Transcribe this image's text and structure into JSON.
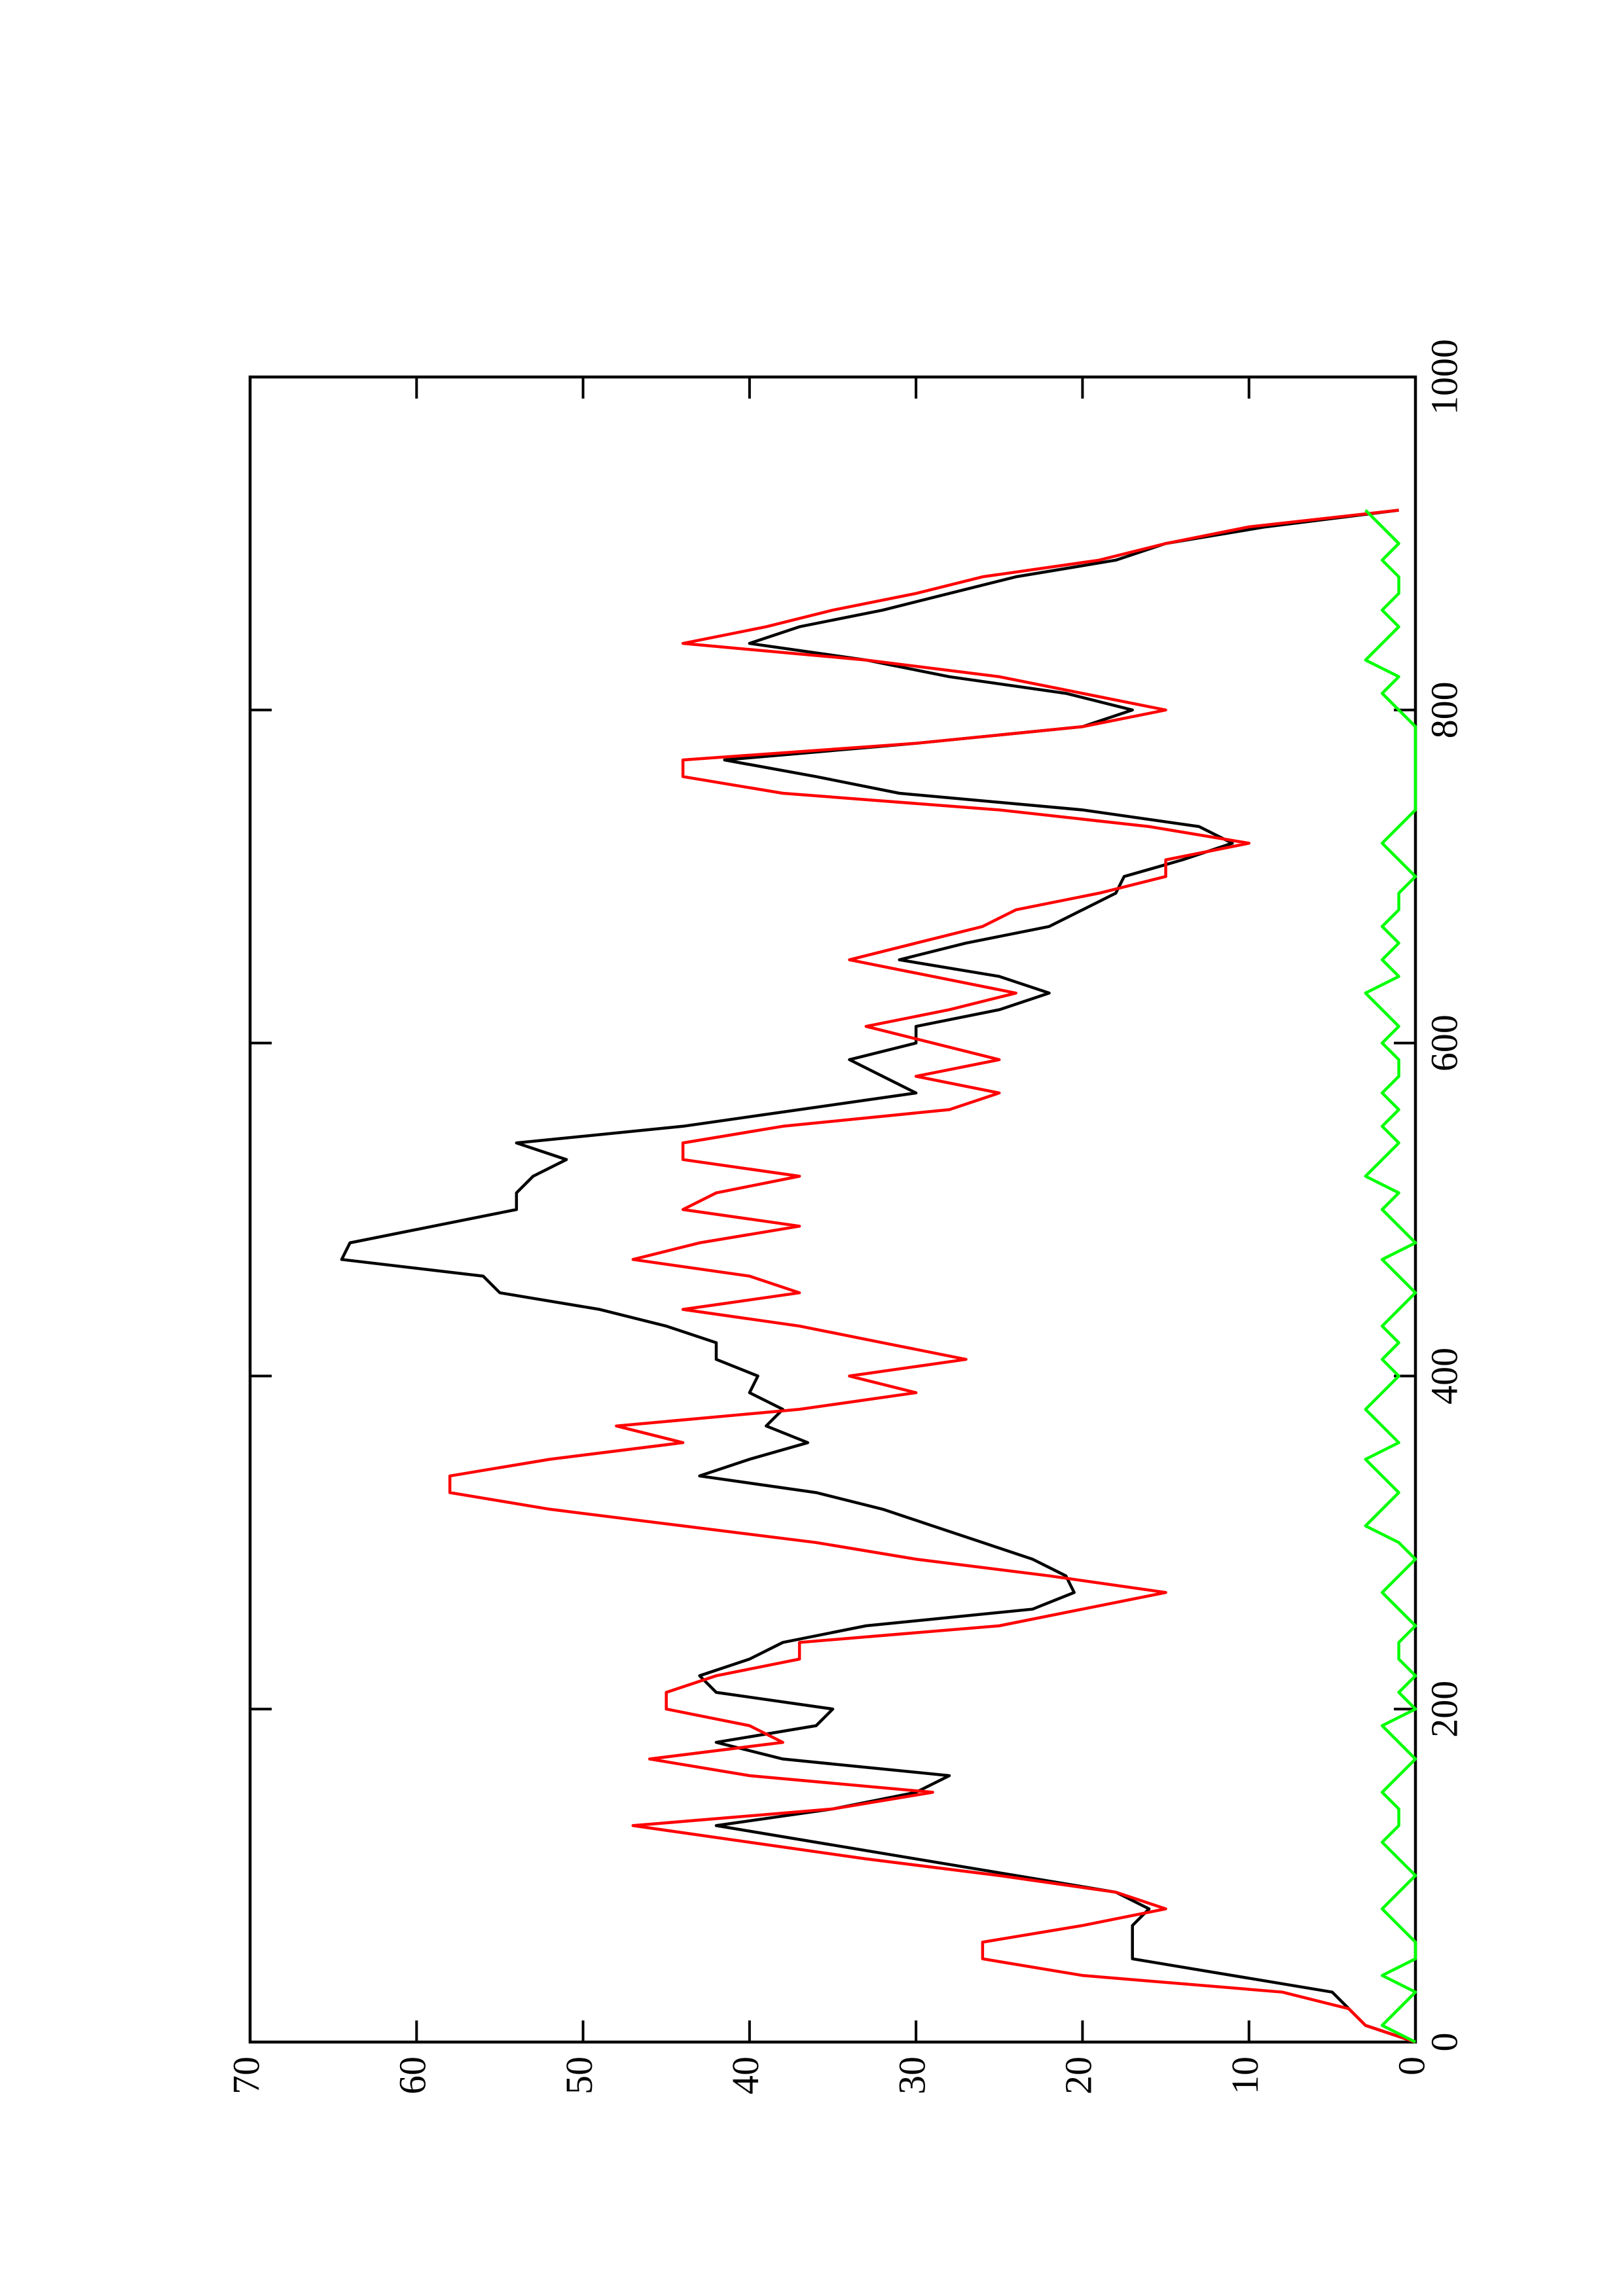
{
  "chart_data": {
    "type": "line",
    "x": [
      0,
      10,
      20,
      30,
      40,
      50,
      60,
      70,
      80,
      90,
      100,
      110,
      120,
      130,
      140,
      150,
      160,
      170,
      180,
      190,
      200,
      210,
      220,
      230,
      240,
      250,
      260,
      270,
      280,
      290,
      300,
      310,
      320,
      330,
      340,
      350,
      360,
      370,
      380,
      390,
      400,
      410,
      420,
      430,
      440,
      450,
      460,
      470,
      480,
      490,
      500,
      510,
      520,
      530,
      540,
      550,
      560,
      570,
      580,
      590,
      600,
      610,
      620,
      630,
      640,
      650,
      660,
      670,
      680,
      690,
      700,
      710,
      720,
      730,
      740,
      750,
      760,
      770,
      780,
      790,
      800,
      810,
      820,
      830,
      840,
      850,
      860,
      870,
      880,
      890,
      900,
      910,
      920
    ],
    "series": [
      {
        "color": "#000000",
        "values": [
          0,
          3,
          4,
          5,
          11,
          17,
          17,
          17,
          16,
          18,
          24,
          30,
          36,
          42,
          35,
          30,
          28,
          38,
          42,
          36,
          35,
          42,
          43,
          40,
          38,
          33,
          23,
          20.5,
          21,
          23,
          26,
          29,
          32,
          36,
          43,
          40,
          36.5,
          39,
          38,
          40,
          39.5,
          42,
          42,
          45,
          49,
          55,
          56,
          64.5,
          64,
          59,
          54,
          54,
          53,
          51,
          54,
          44,
          37,
          30,
          32,
          34,
          30,
          30,
          25,
          22,
          25,
          31,
          27,
          22,
          20,
          18,
          17.5,
          14,
          11,
          13,
          20,
          31,
          36,
          41.5,
          30,
          20,
          17,
          21,
          28,
          33,
          40,
          37,
          32,
          28,
          24,
          18,
          15,
          9,
          1
        ]
      },
      {
        "color": "#ff0000",
        "values": [
          0,
          3,
          4,
          8,
          20,
          26,
          26,
          20,
          15,
          18,
          25,
          33,
          40,
          47,
          35,
          29,
          40,
          46,
          38,
          40,
          45,
          45,
          42,
          37,
          37,
          25,
          20,
          15,
          22,
          30,
          36,
          44,
          52,
          58,
          58,
          52,
          44,
          48,
          37,
          30,
          34,
          27,
          32,
          37,
          44,
          37,
          40,
          47,
          43,
          37,
          44,
          42,
          37,
          44,
          44,
          38,
          28,
          25,
          30,
          25,
          29,
          33,
          28,
          24,
          29,
          34,
          30,
          26,
          24,
          19,
          15,
          15,
          10,
          16,
          25,
          38,
          44,
          44,
          30,
          20,
          15,
          20,
          25,
          33,
          44,
          39,
          35,
          30,
          26,
          19,
          15,
          10,
          1
        ]
      },
      {
        "color": "#00ff00",
        "values": [
          0,
          2,
          1,
          0,
          2,
          0,
          0,
          1,
          2,
          1,
          0,
          1,
          2,
          1,
          1,
          2,
          1,
          0,
          1,
          2,
          0,
          1,
          0,
          1,
          1,
          0,
          1,
          2,
          1,
          0,
          1,
          3,
          2,
          1,
          2,
          3,
          1,
          2,
          3,
          2,
          1,
          2,
          1,
          2,
          1,
          0,
          1,
          2,
          0,
          1,
          2,
          1,
          3,
          2,
          1,
          2,
          1,
          2,
          1,
          1,
          2,
          1,
          2,
          3,
          1,
          2,
          1,
          2,
          1,
          1,
          0,
          1,
          2,
          1,
          0,
          0,
          0,
          0,
          0,
          0,
          1,
          2,
          1,
          3,
          2,
          1,
          2,
          1,
          1,
          2,
          1,
          2,
          3
        ]
      }
    ],
    "xlim": [
      0,
      1000
    ],
    "xticks": [
      0,
      200,
      400,
      600,
      800,
      1000
    ],
    "ylim": [
      0,
      70
    ],
    "yticks": [
      0,
      10,
      20,
      30,
      40,
      50,
      60,
      70
    ]
  }
}
